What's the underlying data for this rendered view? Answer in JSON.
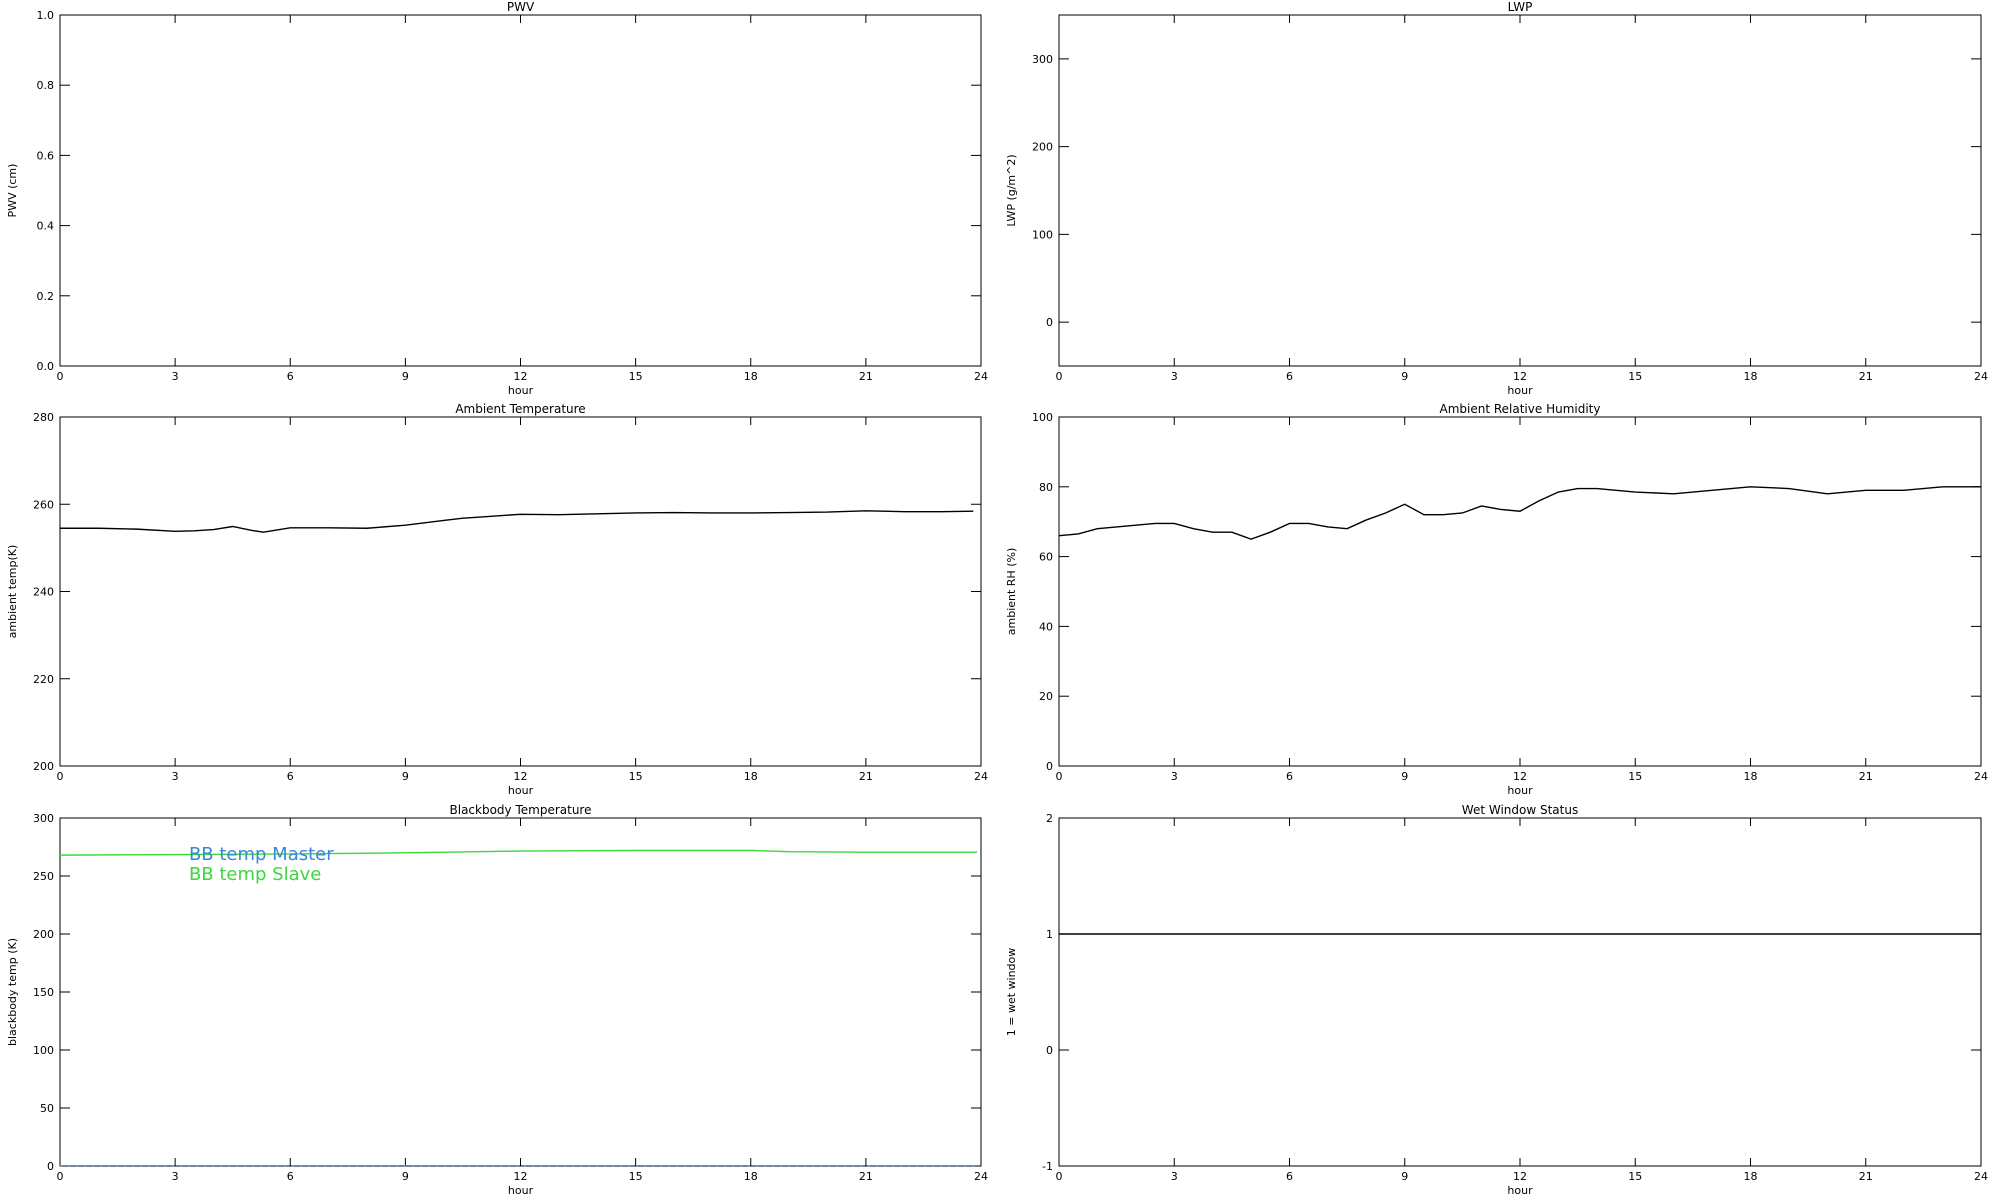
{
  "chart_data": [
    {
      "type": "line",
      "title": "PWV",
      "xlabel": "hour",
      "ylabel": "PWV (cm)",
      "xlim": [
        0,
        24
      ],
      "xticks": [
        0,
        3,
        6,
        9,
        12,
        15,
        18,
        21,
        24
      ],
      "ylim": [
        0,
        1
      ],
      "yticks": [
        {
          "value": 0,
          "label": "0.0"
        },
        0.2,
        0.4,
        0.6,
        0.8,
        {
          "value": 1,
          "label": "1.0"
        }
      ]
    },
    {
      "type": "line",
      "title": "LWP",
      "xlabel": "hour",
      "ylabel": "LWP (g/m^2)",
      "xlim": [
        0,
        24
      ],
      "xticks": [
        0,
        3,
        6,
        9,
        12,
        15,
        18,
        21,
        24
      ],
      "ylim": [
        -50,
        350
      ],
      "yticks": [
        0,
        100,
        200,
        300
      ]
    },
    {
      "type": "line",
      "title": "Ambient Temperature",
      "xlabel": "hour",
      "ylabel": "ambient temp(K)",
      "xlim": [
        0,
        24
      ],
      "xticks": [
        0,
        3,
        6,
        9,
        12,
        15,
        18,
        21,
        24
      ],
      "ylim": [
        200,
        280
      ],
      "yticks": [
        200,
        220,
        240,
        260,
        280
      ],
      "x": [
        0,
        1,
        2,
        3,
        3.5,
        4,
        4.5,
        5,
        5.3,
        6,
        7,
        8,
        9,
        10,
        10.5,
        11,
        12,
        13,
        14,
        15,
        16,
        17,
        18,
        19,
        20,
        21,
        22,
        23,
        23.8
      ],
      "series": [
        {
          "name": "ambient temp",
          "color": "#000000",
          "values": [
            254.5,
            254.5,
            254.3,
            253.8,
            253.9,
            254.2,
            254.9,
            254.0,
            253.6,
            254.6,
            254.6,
            254.5,
            255.2,
            256.3,
            256.8,
            257.1,
            257.7,
            257.6,
            257.8,
            258.0,
            258.1,
            258.0,
            258.0,
            258.1,
            258.2,
            258.5,
            258.3,
            258.3,
            258.4
          ]
        }
      ]
    },
    {
      "type": "line",
      "title": "Ambient Relative Humidity",
      "xlabel": "hour",
      "ylabel": "ambient RH (%)",
      "xlim": [
        0,
        24
      ],
      "xticks": [
        0,
        3,
        6,
        9,
        12,
        15,
        18,
        21,
        24
      ],
      "ylim": [
        0,
        100
      ],
      "yticks": [
        0,
        20,
        40,
        60,
        80,
        100
      ],
      "x": [
        0,
        0.5,
        1,
        1.5,
        2,
        2.5,
        3,
        3.5,
        4,
        4.5,
        5,
        5.5,
        6,
        6.5,
        7,
        7.5,
        8,
        8.5,
        9,
        9.5,
        10,
        10.5,
        11,
        11.5,
        12,
        12.5,
        13,
        13.5,
        14,
        15,
        16,
        17,
        18,
        19,
        20,
        21,
        22,
        23,
        24
      ],
      "series": [
        {
          "name": "ambient RH",
          "color": "#000000",
          "values": [
            66,
            66.5,
            68,
            68.5,
            69,
            69.5,
            69.5,
            68,
            67,
            67,
            65,
            67,
            69.5,
            69.5,
            68.5,
            68,
            70.5,
            72.5,
            75,
            72,
            72,
            72.5,
            74.5,
            73.5,
            73,
            76,
            78.5,
            79.5,
            79.5,
            78.5,
            78,
            79,
            80,
            79.5,
            78,
            79,
            79,
            80,
            80
          ]
        }
      ]
    },
    {
      "type": "line",
      "title": "Blackbody Temperature",
      "xlabel": "hour",
      "ylabel": "blackbody temp (K)",
      "xlim": [
        0,
        24
      ],
      "xticks": [
        0,
        3,
        6,
        9,
        12,
        15,
        18,
        21,
        24
      ],
      "ylim": [
        0,
        300
      ],
      "yticks": [
        0,
        50,
        100,
        150,
        200,
        250,
        300
      ],
      "x": [
        0,
        3,
        6,
        9,
        12,
        15,
        18,
        19,
        21,
        23.9
      ],
      "series": [
        {
          "name": "BB temp Master",
          "color": "#3a86d6",
          "values": [
            0,
            0,
            0,
            0,
            0,
            0,
            0,
            0,
            0,
            0
          ]
        },
        {
          "name": "BB temp Slave",
          "color": "#3ad83a",
          "values": [
            268,
            268.5,
            269,
            270,
            271.5,
            272,
            272,
            271,
            270.5,
            270.5
          ]
        }
      ]
    },
    {
      "type": "line",
      "title": "Wet Window Status",
      "xlabel": "hour",
      "ylabel": "1 = wet window",
      "xlim": [
        0,
        24
      ],
      "xticks": [
        0,
        3,
        6,
        9,
        12,
        15,
        18,
        21,
        24
      ],
      "ylim": [
        -1,
        2
      ],
      "yticks": [
        -1,
        0,
        1,
        2
      ],
      "x": [
        0,
        24
      ],
      "series": [
        {
          "name": "wet window",
          "color": "#000000",
          "values": [
            1,
            1
          ]
        }
      ]
    }
  ]
}
